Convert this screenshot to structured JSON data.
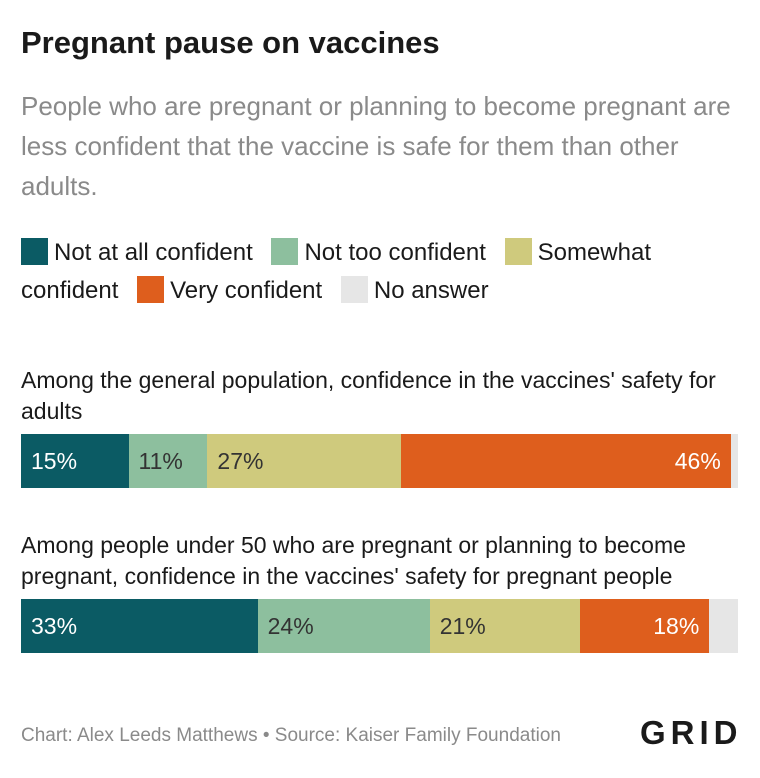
{
  "title": "Pregnant pause on vaccines",
  "subtitle": "People who are pregnant or planning to become pregnant are less confident that the vaccine is safe for them than other adults.",
  "legend": [
    {
      "label": "Not at all confident",
      "color": "#0b5b64"
    },
    {
      "label": "Not too confident",
      "color": "#8dbf9e"
    },
    {
      "label": "Somewhat confident",
      "color": "#cfca7d"
    },
    {
      "label": "Very confident",
      "color": "#de5e1d"
    },
    {
      "label": "No answer",
      "color": "#e6e6e6"
    }
  ],
  "chart_data": {
    "type": "bar",
    "stacked": true,
    "orientation": "horizontal",
    "categories": [
      "Among the general population, confidence in the vaccines' safety for adults",
      "Among people under 50 who are pregnant or planning to become pregnant, confidence in the vaccines' safety for pregnant people"
    ],
    "series": [
      {
        "name": "Not at all confident",
        "values": [
          15,
          33
        ],
        "labels": [
          "15%",
          "33%"
        ],
        "color": "#0b5b64"
      },
      {
        "name": "Not too confident",
        "values": [
          11,
          24
        ],
        "labels": [
          "11%",
          "24%"
        ],
        "color": "#8dbf9e"
      },
      {
        "name": "Somewhat confident",
        "values": [
          27,
          21
        ],
        "labels": [
          "27%",
          "21%"
        ],
        "color": "#cfca7d"
      },
      {
        "name": "Very confident",
        "values": [
          46,
          18
        ],
        "labels": [
          "46%",
          "18%"
        ],
        "color": "#de5e1d"
      },
      {
        "name": "No answer",
        "values": [
          1,
          4
        ],
        "labels": [
          "",
          ""
        ],
        "color": "#e6e6e6"
      }
    ],
    "xlim": [
      0,
      100
    ],
    "legend_position": "top"
  },
  "footer": "Chart: Alex Leeds Matthews • Source: Kaiser Family Foundation",
  "logo": "GRID"
}
